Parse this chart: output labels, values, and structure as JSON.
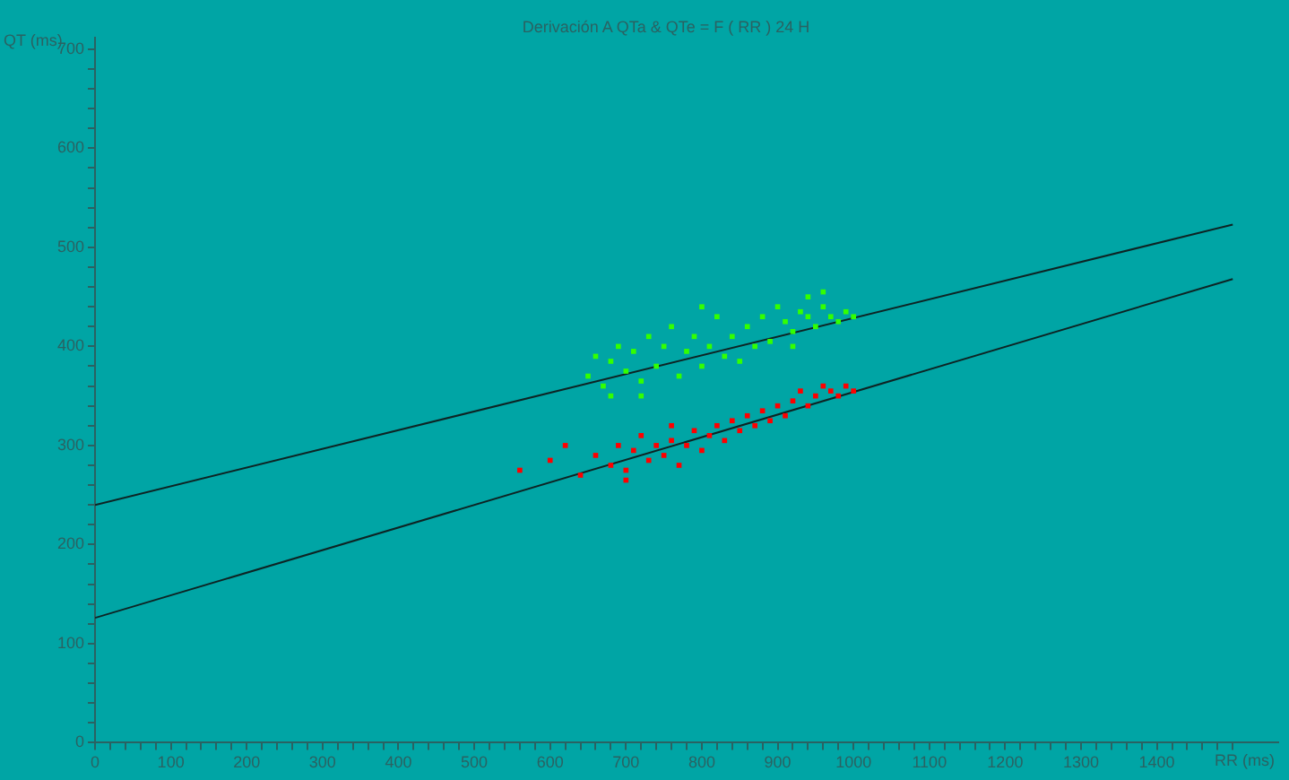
{
  "chart_data": {
    "type": "scatter",
    "title": "Derivación A QTa & QTe = F ( RR ) 24 H",
    "xlabel": "RR (ms)",
    "ylabel": "QT (ms)",
    "xlim": [
      0,
      1560
    ],
    "ylim": [
      0,
      712
    ],
    "xticks": [
      0,
      {
        "value": 20,
        "label": null
      },
      {
        "value": 40,
        "label": null
      },
      {
        "value": 60,
        "label": null
      },
      {
        "value": 80,
        "label": null
      },
      100,
      {
        "value": 120,
        "label": null
      },
      {
        "value": 140,
        "label": null
      },
      {
        "value": 160,
        "label": null
      },
      {
        "value": 180,
        "label": null
      },
      200,
      {
        "value": 220,
        "label": null
      },
      {
        "value": 240,
        "label": null
      },
      {
        "value": 260,
        "label": null
      },
      {
        "value": 280,
        "label": null
      },
      300,
      {
        "value": 320,
        "label": null
      },
      {
        "value": 340,
        "label": null
      },
      {
        "value": 360,
        "label": null
      },
      {
        "value": 380,
        "label": null
      },
      400,
      {
        "value": 420,
        "label": null
      },
      {
        "value": 440,
        "label": null
      },
      {
        "value": 460,
        "label": null
      },
      {
        "value": 480,
        "label": null
      },
      500,
      {
        "value": 520,
        "label": null
      },
      {
        "value": 540,
        "label": null
      },
      {
        "value": 560,
        "label": null
      },
      {
        "value": 580,
        "label": null
      },
      600,
      {
        "value": 620,
        "label": null
      },
      {
        "value": 640,
        "label": null
      },
      {
        "value": 660,
        "label": null
      },
      {
        "value": 680,
        "label": null
      },
      700,
      {
        "value": 720,
        "label": null
      },
      {
        "value": 740,
        "label": null
      },
      {
        "value": 760,
        "label": null
      },
      {
        "value": 780,
        "label": null
      },
      800,
      {
        "value": 820,
        "label": null
      },
      {
        "value": 840,
        "label": null
      },
      {
        "value": 860,
        "label": null
      },
      {
        "value": 880,
        "label": null
      },
      900,
      {
        "value": 920,
        "label": null
      },
      {
        "value": 940,
        "label": null
      },
      {
        "value": 960,
        "label": null
      },
      {
        "value": 980,
        "label": null
      },
      1000,
      {
        "value": 1020,
        "label": null
      },
      {
        "value": 1040,
        "label": null
      },
      {
        "value": 1060,
        "label": null
      },
      {
        "value": 1080,
        "label": null
      },
      1100,
      {
        "value": 1120,
        "label": null
      },
      {
        "value": 1140,
        "label": null
      },
      {
        "value": 1160,
        "label": null
      },
      {
        "value": 1180,
        "label": null
      },
      1200,
      {
        "value": 1220,
        "label": null
      },
      {
        "value": 1240,
        "label": null
      },
      {
        "value": 1260,
        "label": null
      },
      {
        "value": 1280,
        "label": null
      },
      1300,
      {
        "value": 1320,
        "label": null
      },
      {
        "value": 1340,
        "label": null
      },
      {
        "value": 1360,
        "label": null
      },
      {
        "value": 1380,
        "label": null
      },
      1400,
      {
        "value": 1420,
        "label": null
      },
      {
        "value": 1440,
        "label": null
      },
      {
        "value": 1460,
        "label": null
      },
      {
        "value": 1480,
        "label": null
      },
      {
        "value": 1500,
        "label": null
      }
    ],
    "yticks": [
      0,
      {
        "value": 20,
        "label": null
      },
      {
        "value": 40,
        "label": null
      },
      {
        "value": 60,
        "label": null
      },
      {
        "value": 80,
        "label": null
      },
      100,
      {
        "value": 120,
        "label": null
      },
      {
        "value": 140,
        "label": null
      },
      {
        "value": 160,
        "label": null
      },
      {
        "value": 180,
        "label": null
      },
      200,
      {
        "value": 220,
        "label": null
      },
      {
        "value": 240,
        "label": null
      },
      {
        "value": 260,
        "label": null
      },
      {
        "value": 280,
        "label": null
      },
      300,
      {
        "value": 320,
        "label": null
      },
      {
        "value": 340,
        "label": null
      },
      {
        "value": 360,
        "label": null
      },
      {
        "value": 380,
        "label": null
      },
      400,
      {
        "value": 420,
        "label": null
      },
      {
        "value": 440,
        "label": null
      },
      {
        "value": 460,
        "label": null
      },
      {
        "value": 480,
        "label": null
      },
      500,
      {
        "value": 520,
        "label": null
      },
      {
        "value": 540,
        "label": null
      },
      {
        "value": 560,
        "label": null
      },
      {
        "value": 580,
        "label": null
      },
      600,
      {
        "value": 620,
        "label": null
      },
      {
        "value": 640,
        "label": null
      },
      {
        "value": 660,
        "label": null
      },
      {
        "value": 680,
        "label": null
      },
      700
    ],
    "grid": false,
    "legend": false,
    "marker": "square",
    "series": [
      {
        "color": "#33ff00",
        "x": [
          650,
          660,
          670,
          680,
          690,
          700,
          710,
          720,
          730,
          740,
          750,
          760,
          770,
          780,
          790,
          800,
          810,
          820,
          830,
          840,
          850,
          860,
          870,
          880,
          890,
          900,
          910,
          920,
          930,
          940,
          950,
          960,
          970,
          980,
          990,
          1000,
          920,
          940,
          960,
          680,
          720,
          800
        ],
        "values": [
          370,
          390,
          360,
          385,
          400,
          375,
          395,
          365,
          410,
          380,
          400,
          420,
          370,
          395,
          410,
          380,
          400,
          430,
          390,
          410,
          385,
          420,
          400,
          430,
          405,
          440,
          425,
          415,
          435,
          450,
          420,
          440,
          430,
          425,
          435,
          430,
          400,
          430,
          455,
          350,
          350,
          440
        ]
      },
      {
        "color": "#ff0000",
        "x": [
          560,
          600,
          640,
          660,
          680,
          690,
          700,
          710,
          720,
          730,
          740,
          750,
          760,
          770,
          780,
          790,
          800,
          810,
          820,
          830,
          840,
          850,
          860,
          870,
          880,
          890,
          900,
          910,
          920,
          930,
          940,
          950,
          960,
          970,
          980,
          990,
          1000,
          700,
          760,
          620
        ],
        "values": [
          275,
          285,
          270,
          290,
          280,
          300,
          275,
          295,
          310,
          285,
          300,
          290,
          305,
          280,
          300,
          315,
          295,
          310,
          320,
          305,
          325,
          315,
          330,
          320,
          335,
          325,
          340,
          330,
          345,
          355,
          340,
          350,
          360,
          355,
          350,
          360,
          355,
          265,
          320,
          300
        ]
      },
      {
        "type": "line",
        "marker": "none",
        "color": "#0d2424",
        "x": [
          0,
          1500
        ],
        "values": [
          240,
          523
        ]
      },
      {
        "type": "line",
        "marker": "none",
        "color": "#0d2424",
        "x": [
          0,
          1500
        ],
        "values": [
          126,
          468
        ]
      }
    ]
  }
}
